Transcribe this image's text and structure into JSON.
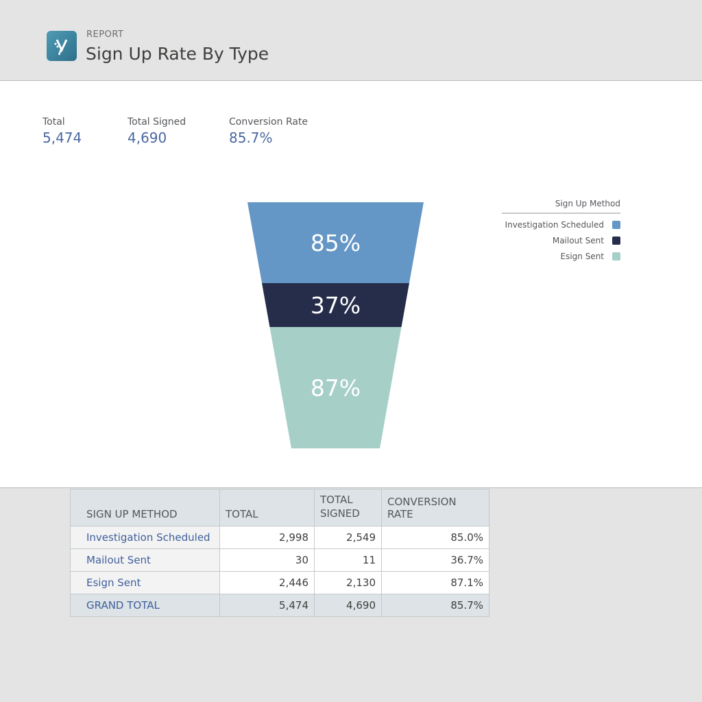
{
  "header": {
    "eyebrow": "REPORT",
    "title": "Sign Up Rate By Type",
    "logo_icon": "brand-logo-icon"
  },
  "kpis": [
    {
      "label": "Total",
      "value": "5,474"
    },
    {
      "label": "Total Signed",
      "value": "4,690"
    },
    {
      "label": "Conversion Rate",
      "value": "85.7%"
    }
  ],
  "chart_data": {
    "type": "funnel",
    "legend_title": "Sign Up Method",
    "legend_position": "top-right",
    "categories": [
      "Investigation Scheduled",
      "Mailout Sent",
      "Esign Sent"
    ],
    "labels": [
      "85%",
      "37%",
      "87%"
    ],
    "values": [
      85,
      37,
      87
    ],
    "colors": [
      "#6496c6",
      "#252d4a",
      "#a6cfc7"
    ]
  },
  "table": {
    "headers": [
      "SIGN UP METHOD",
      "TOTAL",
      "TOTAL SIGNED",
      "CONVERSION RATE"
    ],
    "rows": [
      [
        "Investigation Scheduled",
        "2,998",
        "2,549",
        "85.0%"
      ],
      [
        "Mailout Sent",
        "30",
        "11",
        "36.7%"
      ],
      [
        "Esign Sent",
        "2,446",
        "2,130",
        "87.1%"
      ]
    ],
    "total": [
      "GRAND TOTAL",
      "5,474",
      "4,690",
      "85.7%"
    ]
  }
}
